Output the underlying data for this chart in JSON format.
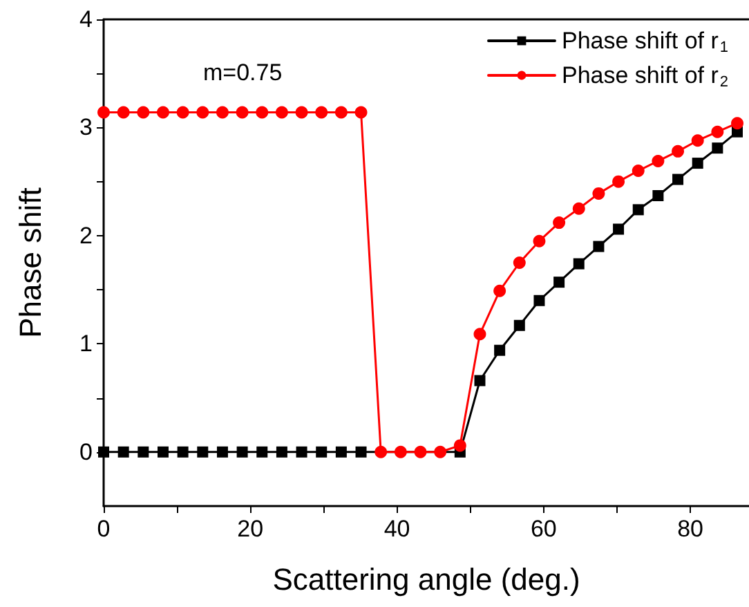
{
  "chart_data": {
    "type": "line",
    "xlabel": "Scattering angle (deg.)",
    "ylabel": "Phase shift",
    "annotations": [
      "m=0.75"
    ],
    "xlim": [
      0,
      88
    ],
    "xticks": [
      0,
      {
        "value": 10,
        "label": null
      },
      20,
      {
        "value": 30,
        "label": null
      },
      40,
      {
        "value": 50,
        "label": null
      },
      60,
      {
        "value": 70,
        "label": null
      },
      80
    ],
    "ylim": [
      -0.5,
      4
    ],
    "yticks": [
      0,
      {
        "value": 0.5,
        "label": null
      },
      1,
      {
        "value": 1.5,
        "label": null
      },
      2,
      {
        "value": 2.5,
        "label": null
      },
      3,
      {
        "value": 3.5,
        "label": null
      },
      4
    ],
    "legend": "top right",
    "grid": false,
    "series": [
      {
        "name": "Phase shift of r$_{1}$",
        "color": "#000000",
        "marker": "square",
        "x": [
          0,
          2.7,
          5.4,
          8.1,
          10.8,
          13.5,
          16.2,
          18.9,
          21.6,
          24.3,
          27,
          29.7,
          32.4,
          35.1,
          48.6,
          51.3,
          54,
          56.7,
          59.4,
          62.1,
          64.8,
          67.5,
          70.2,
          72.9,
          75.6,
          78.3,
          81,
          83.7,
          86.4
        ],
        "values": [
          0,
          0,
          0,
          0,
          0,
          0,
          0,
          0,
          0,
          0,
          0,
          0,
          0,
          0,
          0,
          0.66,
          0.94,
          1.17,
          1.4,
          1.57,
          1.74,
          1.9,
          2.06,
          2.24,
          2.37,
          2.52,
          2.67,
          2.81,
          2.96
        ]
      },
      {
        "name": "Phase shift of r$_{2}$",
        "color": "#ff0000",
        "marker": "circle",
        "x": [
          0,
          2.7,
          5.4,
          8.1,
          10.8,
          13.5,
          16.2,
          18.9,
          21.6,
          24.3,
          27,
          29.7,
          32.4,
          35.1,
          37.8,
          40.5,
          43.2,
          45.9,
          48.6,
          51.3,
          54,
          56.7,
          59.4,
          62.1,
          64.8,
          67.5,
          70.2,
          72.9,
          75.6,
          78.3,
          81,
          83.7,
          86.4
        ],
        "values": [
          3.14,
          3.14,
          3.14,
          3.14,
          3.14,
          3.14,
          3.14,
          3.14,
          3.14,
          3.14,
          3.14,
          3.14,
          3.14,
          3.14,
          0,
          0,
          0,
          0,
          0.06,
          1.09,
          1.49,
          1.75,
          1.95,
          2.12,
          2.25,
          2.39,
          2.5,
          2.6,
          2.69,
          2.78,
          2.88,
          2.96,
          3.04
        ]
      }
    ]
  }
}
